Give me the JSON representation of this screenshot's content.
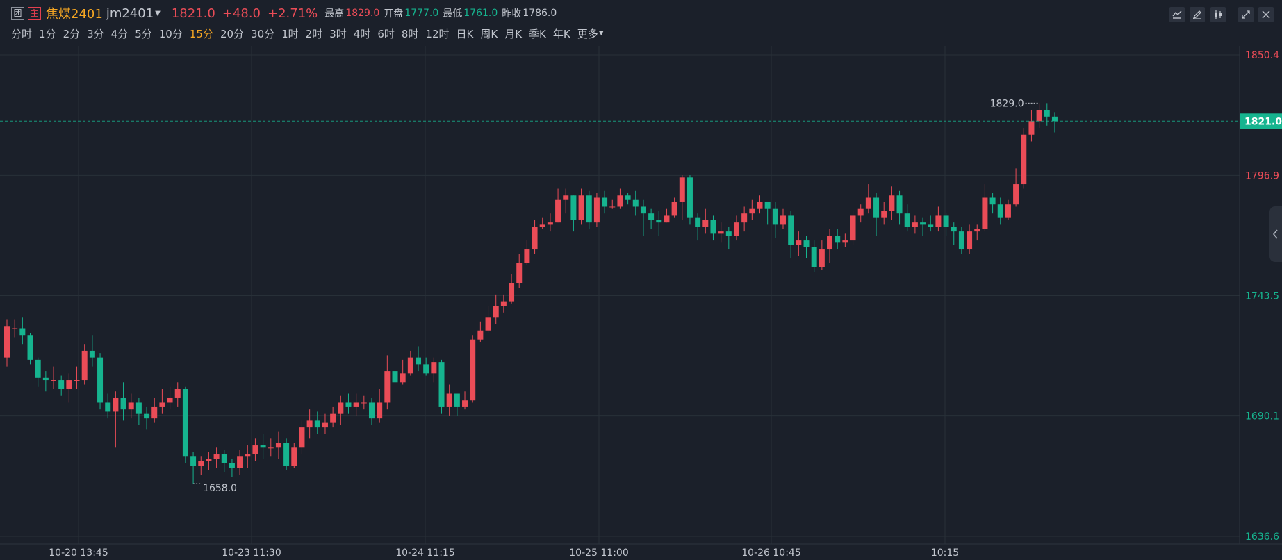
{
  "header": {
    "tag_tuan": "团",
    "tag_zhu": "主",
    "product_name": "焦煤2401",
    "product_code": "jm2401",
    "last_price": "1821.0",
    "change": "+48.0",
    "change_pct": "+2.71%",
    "high_label": "最高",
    "high_value": "1829.0",
    "open_label": "开盘",
    "open_value": "1777.0",
    "low_label": "最低",
    "low_value": "1761.0",
    "prev_close_label": "昨收",
    "prev_close_value": "1786.0"
  },
  "intervals": [
    "分时",
    "1分",
    "2分",
    "3分",
    "4分",
    "5分",
    "10分",
    "15分",
    "20分",
    "30分",
    "1时",
    "2时",
    "3时",
    "4时",
    "6时",
    "8时",
    "12时",
    "日K",
    "周K",
    "月K",
    "季K",
    "年K",
    "更多"
  ],
  "active_interval": "15分",
  "toolbar_icons": [
    "indicator-icon",
    "draw-pen-icon",
    "candle-style-icon",
    "fullscreen-icon",
    "close-icon"
  ],
  "colors": {
    "up": "#ea4c57",
    "down": "#16b48f",
    "accent": "#f5a623",
    "background": "#1b202a",
    "grid": "#283038",
    "text": "#c3c7cf"
  },
  "chart_data": {
    "type": "candlestick",
    "y_ticks": [
      "1850.4",
      "1796.9",
      "1743.5",
      "1690.1",
      "1636.6"
    ],
    "ylim": [
      1636.6,
      1850.4
    ],
    "x_labels": [
      "10-20 13:45",
      "10-23 11:30",
      "10-24 11:15",
      "10-25 11:00",
      "10-26 10:45",
      "10:15"
    ],
    "last_price_label": "1821.0",
    "last_price": 1821.0,
    "high_annotation": "1829.0",
    "low_annotation": "1658.0",
    "high": 1829.0,
    "low": 1658.0,
    "candles": [
      [
        1716,
        1730,
        1733,
        1712
      ],
      [
        1729,
        1729,
        1733,
        1725
      ],
      [
        1729,
        1726,
        1734,
        1722
      ],
      [
        1726,
        1715,
        1727,
        1713
      ],
      [
        1715,
        1707,
        1716,
        1703
      ],
      [
        1707,
        1706,
        1710,
        1701
      ],
      [
        1706,
        1706,
        1712,
        1702
      ],
      [
        1706,
        1702,
        1708,
        1699
      ],
      [
        1702,
        1706,
        1709,
        1696
      ],
      [
        1706,
        1706,
        1712,
        1702
      ],
      [
        1706,
        1719,
        1722,
        1704
      ],
      [
        1719,
        1716,
        1726,
        1712
      ],
      [
        1716,
        1696,
        1718,
        1693
      ],
      [
        1696,
        1692,
        1700,
        1689
      ],
      [
        1692,
        1698,
        1701,
        1676
      ],
      [
        1698,
        1693,
        1705,
        1688
      ],
      [
        1693,
        1696,
        1700,
        1689
      ],
      [
        1696,
        1691,
        1698,
        1686
      ],
      [
        1691,
        1689,
        1694,
        1684
      ],
      [
        1689,
        1694,
        1698,
        1687
      ],
      [
        1694,
        1696,
        1702,
        1691
      ],
      [
        1696,
        1698,
        1703,
        1693
      ],
      [
        1698,
        1702,
        1705,
        1694
      ],
      [
        1702,
        1672,
        1703,
        1669
      ],
      [
        1672,
        1668,
        1674,
        1660
      ],
      [
        1668,
        1670,
        1672,
        1664
      ],
      [
        1670,
        1671,
        1674,
        1666
      ],
      [
        1671,
        1673,
        1676,
        1667
      ],
      [
        1673,
        1669,
        1675,
        1665
      ],
      [
        1669,
        1667,
        1671,
        1663
      ],
      [
        1667,
        1672,
        1675,
        1664
      ],
      [
        1672,
        1673,
        1677,
        1667
      ],
      [
        1673,
        1677,
        1680,
        1670
      ],
      [
        1677,
        1676,
        1682,
        1671
      ],
      [
        1676,
        1676,
        1680,
        1672
      ],
      [
        1676,
        1678,
        1683,
        1671
      ],
      [
        1678,
        1668,
        1680,
        1666
      ],
      [
        1668,
        1676,
        1678,
        1667
      ],
      [
        1676,
        1685,
        1688,
        1673
      ],
      [
        1685,
        1688,
        1693,
        1680
      ],
      [
        1688,
        1685,
        1692,
        1682
      ],
      [
        1685,
        1687,
        1691,
        1682
      ],
      [
        1687,
        1691,
        1694,
        1685
      ],
      [
        1691,
        1696,
        1699,
        1686
      ],
      [
        1696,
        1694,
        1700,
        1691
      ],
      [
        1694,
        1696,
        1700,
        1690
      ],
      [
        1696,
        1696,
        1699,
        1693
      ],
      [
        1696,
        1689,
        1698,
        1686
      ],
      [
        1689,
        1696,
        1702,
        1687
      ],
      [
        1696,
        1710,
        1717,
        1693
      ],
      [
        1710,
        1705,
        1712,
        1702
      ],
      [
        1705,
        1709,
        1715,
        1704
      ],
      [
        1709,
        1716,
        1719,
        1708
      ],
      [
        1716,
        1713,
        1721,
        1710
      ],
      [
        1713,
        1709,
        1716,
        1708
      ],
      [
        1709,
        1714,
        1716,
        1705
      ],
      [
        1714,
        1694,
        1715,
        1691
      ],
      [
        1694,
        1700,
        1704,
        1690
      ],
      [
        1700,
        1694,
        1700,
        1690
      ],
      [
        1694,
        1697,
        1701,
        1693
      ],
      [
        1697,
        1724,
        1726,
        1696
      ],
      [
        1724,
        1728,
        1732,
        1723
      ],
      [
        1728,
        1734,
        1739,
        1727
      ],
      [
        1734,
        1739,
        1744,
        1731
      ],
      [
        1739,
        1741,
        1744,
        1736
      ],
      [
        1741,
        1749,
        1753,
        1740
      ],
      [
        1749,
        1758,
        1762,
        1747
      ],
      [
        1758,
        1764,
        1768,
        1757
      ],
      [
        1764,
        1774,
        1777,
        1762
      ],
      [
        1774,
        1775,
        1778,
        1773
      ],
      [
        1775,
        1776,
        1780,
        1772
      ],
      [
        1776,
        1786,
        1791,
        1776
      ],
      [
        1786,
        1788,
        1791,
        1780
      ],
      [
        1788,
        1777,
        1788,
        1772
      ],
      [
        1777,
        1788,
        1791,
        1775
      ],
      [
        1788,
        1776,
        1790,
        1773
      ],
      [
        1776,
        1787,
        1789,
        1774
      ],
      [
        1787,
        1783,
        1790,
        1780
      ],
      [
        1783,
        1783,
        1786,
        1782
      ],
      [
        1783,
        1788,
        1791,
        1782
      ],
      [
        1788,
        1786,
        1789,
        1784
      ],
      [
        1786,
        1783,
        1790,
        1779
      ],
      [
        1783,
        1780,
        1786,
        1770
      ],
      [
        1780,
        1777,
        1782,
        1773
      ],
      [
        1777,
        1776,
        1781,
        1770
      ],
      [
        1776,
        1779,
        1782,
        1776
      ],
      [
        1779,
        1785,
        1787,
        1778
      ],
      [
        1785,
        1796,
        1797,
        1777
      ],
      [
        1796,
        1778,
        1797,
        1775
      ],
      [
        1778,
        1774,
        1780,
        1768
      ],
      [
        1774,
        1777,
        1782,
        1771
      ],
      [
        1777,
        1771,
        1779,
        1768
      ],
      [
        1771,
        1772,
        1776,
        1767
      ],
      [
        1772,
        1770,
        1774,
        1764
      ],
      [
        1770,
        1776,
        1779,
        1768
      ],
      [
        1776,
        1780,
        1783,
        1772
      ],
      [
        1780,
        1782,
        1786,
        1777
      ],
      [
        1782,
        1785,
        1788,
        1780
      ],
      [
        1785,
        1782,
        1785,
        1775
      ],
      [
        1782,
        1775,
        1785,
        1769
      ],
      [
        1775,
        1779,
        1782,
        1773
      ],
      [
        1779,
        1766,
        1781,
        1760
      ],
      [
        1766,
        1768,
        1772,
        1761
      ],
      [
        1768,
        1765,
        1770,
        1760
      ],
      [
        1765,
        1756,
        1768,
        1754
      ],
      [
        1756,
        1764,
        1768,
        1755
      ],
      [
        1764,
        1770,
        1773,
        1758
      ],
      [
        1770,
        1767,
        1773,
        1764
      ],
      [
        1767,
        1768,
        1771,
        1765
      ],
      [
        1768,
        1779,
        1781,
        1766
      ],
      [
        1779,
        1782,
        1784,
        1776
      ],
      [
        1782,
        1787,
        1793,
        1780
      ],
      [
        1787,
        1778,
        1789,
        1770
      ],
      [
        1778,
        1781,
        1785,
        1775
      ],
      [
        1781,
        1788,
        1792,
        1777
      ],
      [
        1788,
        1780,
        1790,
        1775
      ],
      [
        1780,
        1774,
        1784,
        1772
      ],
      [
        1774,
        1776,
        1779,
        1771
      ],
      [
        1776,
        1775,
        1778,
        1770
      ],
      [
        1775,
        1774,
        1779,
        1772
      ],
      [
        1774,
        1779,
        1783,
        1772
      ],
      [
        1779,
        1774,
        1780,
        1770
      ],
      [
        1774,
        1772,
        1776,
        1766
      ],
      [
        1772,
        1764,
        1774,
        1762
      ],
      [
        1764,
        1772,
        1775,
        1762
      ],
      [
        1772,
        1773,
        1775,
        1768
      ],
      [
        1773,
        1787,
        1793,
        1772
      ],
      [
        1787,
        1784,
        1789,
        1780
      ],
      [
        1784,
        1778,
        1787,
        1775
      ],
      [
        1778,
        1784,
        1786,
        1777
      ],
      [
        1784,
        1793,
        1800,
        1783
      ],
      [
        1793,
        1815,
        1818,
        1791
      ],
      [
        1815,
        1821,
        1826,
        1812
      ],
      [
        1821,
        1826,
        1829,
        1818
      ],
      [
        1826,
        1823,
        1829,
        1819
      ],
      [
        1823,
        1821,
        1825,
        1816
      ]
    ]
  }
}
